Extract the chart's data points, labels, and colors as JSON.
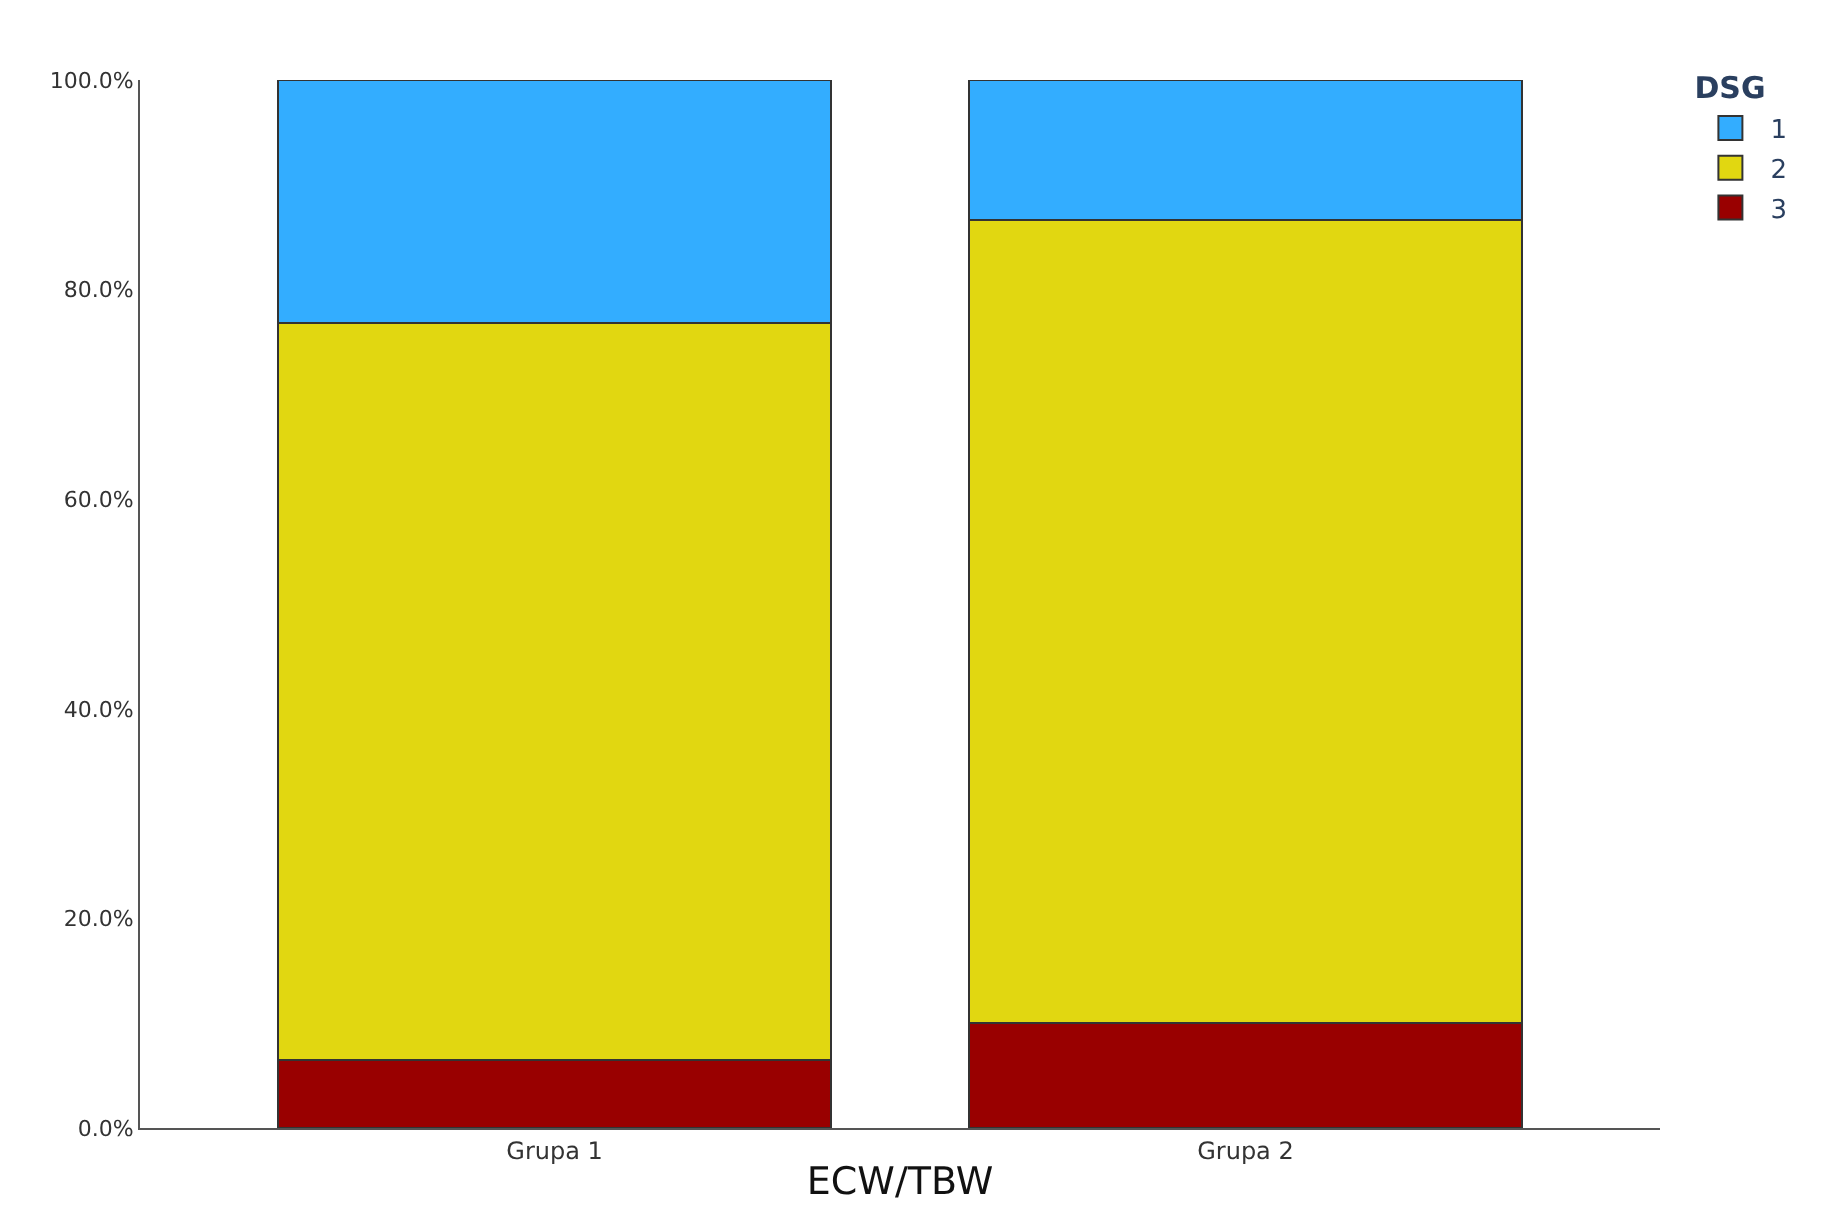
{
  "chart_data": {
    "type": "bar",
    "stacked": true,
    "xlabel": "ECW/TBW",
    "legend_title": "DSG",
    "legend": "top right",
    "categories": [
      "Grupa 1",
      "Grupa 2"
    ],
    "series": [
      {
        "name": "3",
        "color": "#990000",
        "values": [
          6.5,
          10.0
        ]
      },
      {
        "name": "2",
        "color": "#e1d711",
        "values": [
          70.3,
          76.6
        ]
      },
      {
        "name": "1",
        "color": "#33adff",
        "values": [
          23.2,
          13.4
        ]
      }
    ],
    "ylim": [
      0,
      100
    ],
    "yticks": [
      {
        "value": 0,
        "label": "0.0%"
      },
      {
        "value": 20,
        "label": "20.0%"
      },
      {
        "value": 40,
        "label": "40.0%"
      },
      {
        "value": 60,
        "label": "60.0%"
      },
      {
        "value": 80,
        "label": "80.0%"
      },
      {
        "value": 100,
        "label": "100.0%"
      }
    ]
  }
}
